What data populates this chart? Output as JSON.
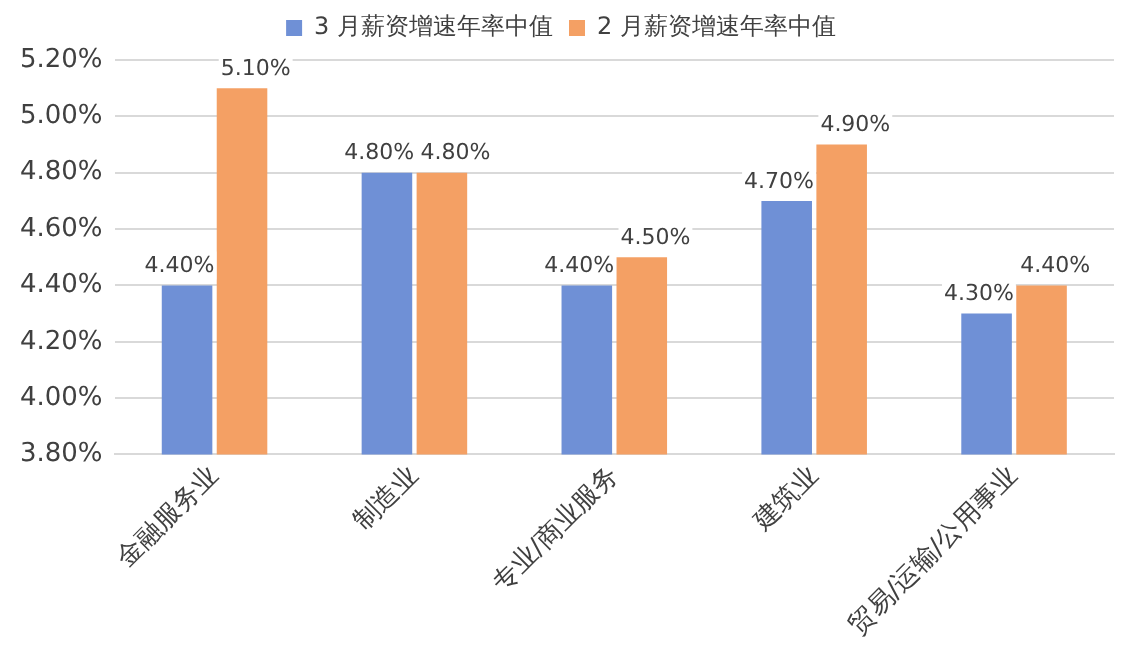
{
  "chart_data": {
    "type": "bar",
    "categories": [
      "金融服务业",
      "制造业",
      "专业/商业服务",
      "建筑业",
      "贸易/运输/公用事业"
    ],
    "series": [
      {
        "name": "3 月薪资增速年率中值",
        "color": "#6f90d6",
        "values": [
          4.4,
          4.8,
          4.4,
          4.7,
          4.3
        ],
        "value_labels": [
          "4.40%",
          "4.80%",
          "4.40%",
          "4.70%",
          "4.30%"
        ]
      },
      {
        "name": "2 月薪资增速年率中值",
        "color": "#f4a064",
        "values": [
          5.1,
          4.8,
          4.5,
          4.9,
          4.4
        ],
        "value_labels": [
          "5.10%",
          "4.80%",
          "4.50%",
          "4.90%",
          "4.40%"
        ]
      }
    ],
    "ylim": [
      3.8,
      5.2
    ],
    "yticks": [
      {
        "value": 3.8,
        "label": "3.80%"
      },
      {
        "value": 4.0,
        "label": "4.00%"
      },
      {
        "value": 4.2,
        "label": "4.20%"
      },
      {
        "value": 4.4,
        "label": "4.40%"
      },
      {
        "value": 4.6,
        "label": "4.60%"
      },
      {
        "value": 4.8,
        "label": "4.80%"
      },
      {
        "value": 5.0,
        "label": "5.00%"
      },
      {
        "value": 5.2,
        "label": "5.20%"
      }
    ],
    "grid": "y",
    "legend": "top"
  }
}
